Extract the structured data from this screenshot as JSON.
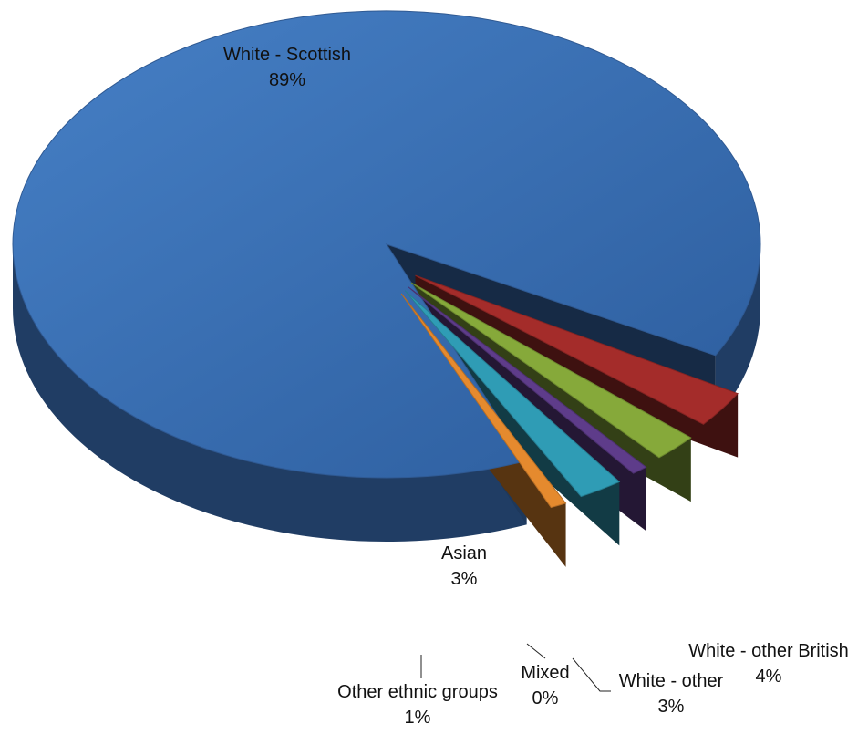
{
  "chart_data": {
    "type": "pie",
    "style": "3d-exploded",
    "slices": [
      {
        "name": "White - Scottish",
        "value": 89,
        "label": "89%",
        "color": "#3B6FB6"
      },
      {
        "name": "White - other British",
        "value": 4,
        "label": "4%",
        "color": "#A42C2A"
      },
      {
        "name": "White - other",
        "value": 3,
        "label": "3%",
        "color": "#86A93A"
      },
      {
        "name": "Mixed",
        "value": 0,
        "label": "0%",
        "color": "#5E3C8A"
      },
      {
        "name": "Asian",
        "value": 3,
        "label": "3%",
        "color": "#2F9CB5"
      },
      {
        "name": "Other ethnic groups",
        "value": 1,
        "label": "1%",
        "color": "#E58A2E"
      }
    ]
  }
}
